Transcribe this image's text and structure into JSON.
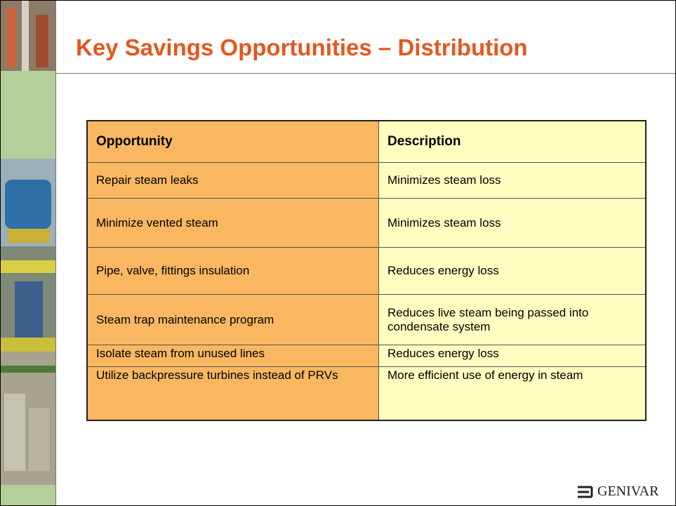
{
  "header": {
    "title": "Key Savings Opportunities – Distribution"
  },
  "table": {
    "columns": [
      "Opportunity",
      "Description"
    ],
    "rows": [
      [
        "Repair steam leaks",
        "Minimizes steam loss"
      ],
      [
        "Minimize vented steam",
        "Minimizes steam loss"
      ],
      [
        "Pipe, valve, fittings insulation",
        "Reduces energy loss"
      ],
      [
        "Steam trap maintenance program",
        "Reduces live steam being passed into condensate system"
      ],
      [
        "Isolate steam from unused lines",
        "Reduces energy loss"
      ],
      [
        "Utilize backpressure turbines instead of PRVs",
        "More efficient use of energy in steam"
      ]
    ]
  },
  "logo": {
    "text": "GENIVAR"
  }
}
